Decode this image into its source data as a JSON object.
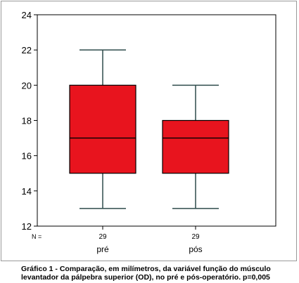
{
  "chart_data": {
    "type": "boxplot",
    "title": "",
    "xlabel": "",
    "ylabel": "",
    "ylim": [
      12,
      24
    ],
    "yticks": [
      12,
      14,
      16,
      18,
      20,
      22,
      24
    ],
    "grid": false,
    "n_label": "N =",
    "categories": [
      "pré",
      "pós"
    ],
    "n": [
      "29",
      "29"
    ],
    "boxes": [
      {
        "label": "pré",
        "min": 13,
        "q1": 15,
        "median": 17,
        "q3": 20,
        "max": 22
      },
      {
        "label": "pós",
        "min": 13,
        "q1": 15,
        "median": 17,
        "q3": 18,
        "max": 20
      }
    ],
    "box_color": "#e8141e",
    "line_color": "#2e4b4b"
  },
  "caption": {
    "line1": "Gráfico 1 - Comparação, em milímetros, da variável função do músculo",
    "line2": "levantador da pálpebra superior (OD), no pré e pós-operatório. p=0,005"
  }
}
